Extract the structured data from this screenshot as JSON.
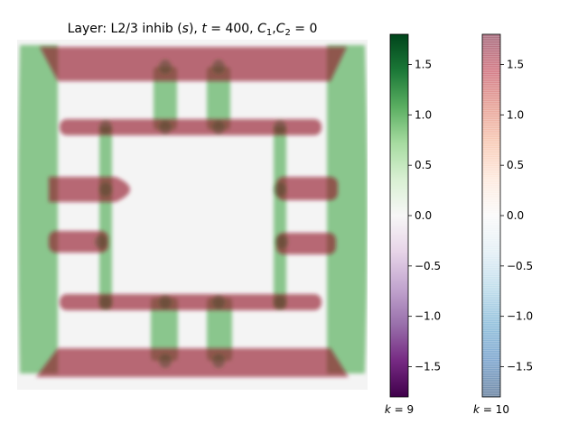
{
  "chart_data": {
    "type": "heatmap",
    "title_parts": {
      "prefix": "Layer: L2/3 inhib (",
      "s": "s",
      "mid": "), ",
      "t": "t",
      "eq": " = 400, ",
      "C": "C",
      "sub1": "1",
      "comma": ",",
      "sub2": "2",
      "end": " = 0"
    },
    "vlim": [
      -1.8,
      1.8
    ],
    "grid": false,
    "colorbars": [
      {
        "name": "k = 9",
        "label": "k = 9",
        "cmap": "PRGn",
        "colors": [
          "#40004b",
          "#762a83",
          "#9970ab",
          "#c2a5cf",
          "#e7d4e8",
          "#f7f7f7",
          "#d9f0d3",
          "#a6dba0",
          "#5aae61",
          "#1b7837",
          "#00441b"
        ],
        "ticks": [
          {
            "value": 1.5,
            "label": "1.5"
          },
          {
            "value": 1.0,
            "label": "1.0"
          },
          {
            "value": 0.5,
            "label": "0.5"
          },
          {
            "value": 0.0,
            "label": "0.0"
          },
          {
            "value": -0.5,
            "label": "−0.5"
          },
          {
            "value": -1.0,
            "label": "−1.0"
          },
          {
            "value": -1.5,
            "label": "−1.5"
          }
        ]
      },
      {
        "name": "k = 10",
        "label": "k = 10",
        "cmap": "RdBu_r",
        "alpha": 0.55,
        "colors": [
          "#053061",
          "#2166ac",
          "#4393c3",
          "#92c5de",
          "#d1e5f0",
          "#f7f7f7",
          "#fddbc7",
          "#f4a582",
          "#d6604d",
          "#b2182b",
          "#67001f"
        ],
        "ticks": [
          {
            "value": 1.5,
            "label": "1.5"
          },
          {
            "value": 1.0,
            "label": "1.0"
          },
          {
            "value": 0.5,
            "label": "0.5"
          },
          {
            "value": 0.0,
            "label": "0.0"
          },
          {
            "value": -0.5,
            "label": "−0.5"
          },
          {
            "value": -1.0,
            "label": "−1.0"
          },
          {
            "value": -1.5,
            "label": "−1.5"
          }
        ]
      }
    ],
    "heatmap_layers": {
      "k9_regions_value": 1.0,
      "k10_regions_value": 1.6
    }
  }
}
